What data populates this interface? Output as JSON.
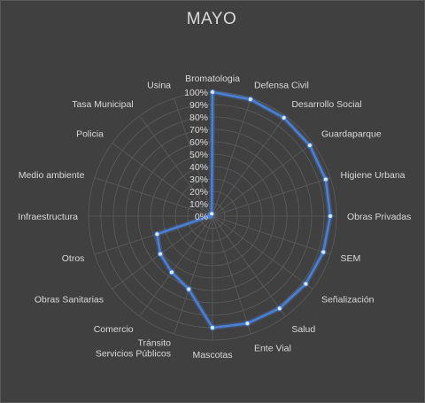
{
  "chart_data": {
    "type": "radar",
    "title": "MAYO",
    "categories": [
      "Bromatologia",
      "Defensa Civil",
      "Desarrollo Social",
      "Guardaparque",
      "Higiene Urbana",
      "Obras Privadas",
      "SEM",
      "Señalización",
      "Salud",
      "Ente Vial",
      "Mascotas",
      "Tránsito\nServicios Públicos",
      "Comercio",
      "Obras Sanitarias",
      "Otros",
      "Infraestructura",
      "Medio ambiente",
      "Policia",
      "Tasa Municipal",
      "Usina"
    ],
    "values": [
      1.0,
      0.99,
      0.98,
      0.97,
      0.96,
      0.95,
      0.94,
      0.93,
      0.92,
      0.91,
      0.9,
      0.62,
      0.56,
      0.52,
      0.47,
      0.02,
      0.02,
      0.02,
      0.02,
      0.02
    ],
    "ylim": [
      0,
      1
    ],
    "ticks": [
      "0%",
      "10%",
      "20%",
      "30%",
      "40%",
      "50%",
      "60%",
      "70%",
      "80%",
      "90%",
      "100%"
    ],
    "grid": true,
    "legend": "none",
    "colors": {
      "line": "#4a7fd6",
      "marker_fill": "#dce8fb",
      "grid": "#5c5c5c",
      "text": "#d9d9d9",
      "background": "#404040"
    }
  }
}
